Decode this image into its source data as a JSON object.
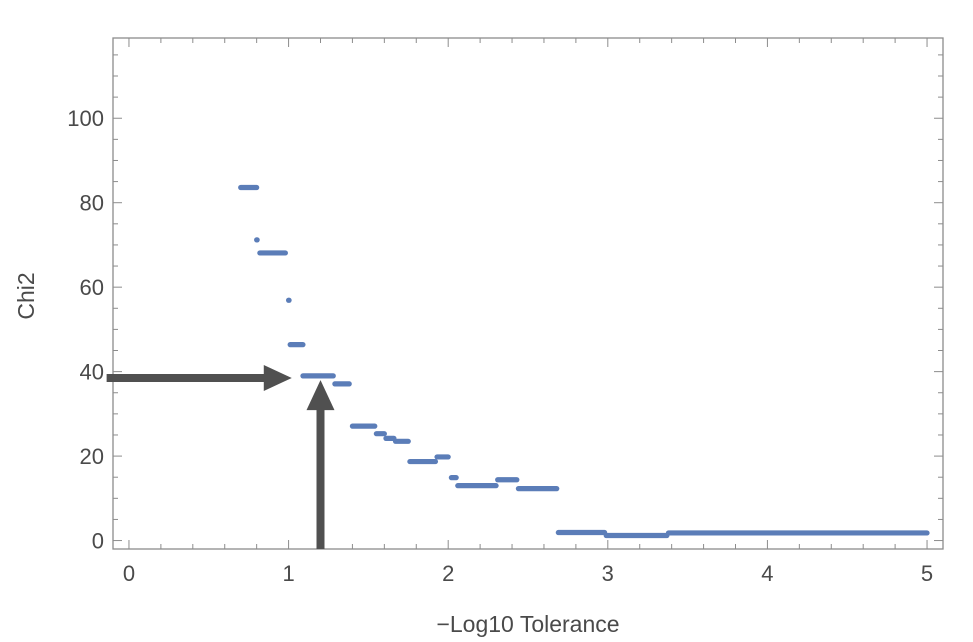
{
  "chart_data": {
    "type": "scatter",
    "xlabel": "−Log10 Tolerance",
    "ylabel": "Chi2",
    "xlim": [
      -0.1,
      5.1
    ],
    "ylim": [
      -2,
      119
    ],
    "x_ticks": [
      "0",
      "1",
      "2",
      "3",
      "4",
      "5"
    ],
    "y_ticks": [
      "0",
      "20",
      "40",
      "60",
      "80",
      "100"
    ],
    "x_tick_values": [
      0,
      1,
      2,
      3,
      4,
      5
    ],
    "y_tick_values": [
      0,
      20,
      40,
      60,
      80,
      100
    ],
    "grid": false,
    "legend": "none",
    "series_color": "#5b7db8",
    "annotation_color": "#505050",
    "series": [
      {
        "points_description_segments": [
          {
            "x0": 0.7,
            "x1": 0.8,
            "y": 83.6
          },
          {
            "x0": 0.8,
            "x1": 0.8,
            "y": 71.2
          },
          {
            "x0": 0.82,
            "x1": 0.98,
            "y": 68.1
          },
          {
            "x0": 1.0,
            "x1": 1.0,
            "y": 56.9
          },
          {
            "x0": 1.01,
            "x1": 1.09,
            "y": 46.4
          },
          {
            "x0": 1.09,
            "x1": 1.28,
            "y": 39.0
          },
          {
            "x0": 1.29,
            "x1": 1.38,
            "y": 37.1
          },
          {
            "x0": 1.4,
            "x1": 1.54,
            "y": 27.1
          },
          {
            "x0": 1.55,
            "x1": 1.6,
            "y": 25.3
          },
          {
            "x0": 1.61,
            "x1": 1.66,
            "y": 24.2
          },
          {
            "x0": 1.67,
            "x1": 1.75,
            "y": 23.5
          },
          {
            "x0": 1.76,
            "x1": 1.92,
            "y": 18.7
          },
          {
            "x0": 1.93,
            "x1": 2.0,
            "y": 19.8
          },
          {
            "x0": 2.02,
            "x1": 2.05,
            "y": 14.9
          },
          {
            "x0": 2.06,
            "x1": 2.3,
            "y": 13.0
          },
          {
            "x0": 2.31,
            "x1": 2.43,
            "y": 14.4
          },
          {
            "x0": 2.44,
            "x1": 2.68,
            "y": 12.3
          },
          {
            "x0": 2.69,
            "x1": 2.98,
            "y": 1.9
          },
          {
            "x0": 2.99,
            "x1": 3.37,
            "y": 1.2
          },
          {
            "x0": 3.38,
            "x1": 5.0,
            "y": 1.8
          }
        ]
      }
    ],
    "annotations": [
      {
        "kind": "horizontal-arrow",
        "y": 38.5,
        "x_from": -0.14,
        "x_to": 1.02
      },
      {
        "kind": "vertical-arrow",
        "x": 1.2,
        "y_from": -2,
        "y_to": 38.0
      }
    ]
  }
}
